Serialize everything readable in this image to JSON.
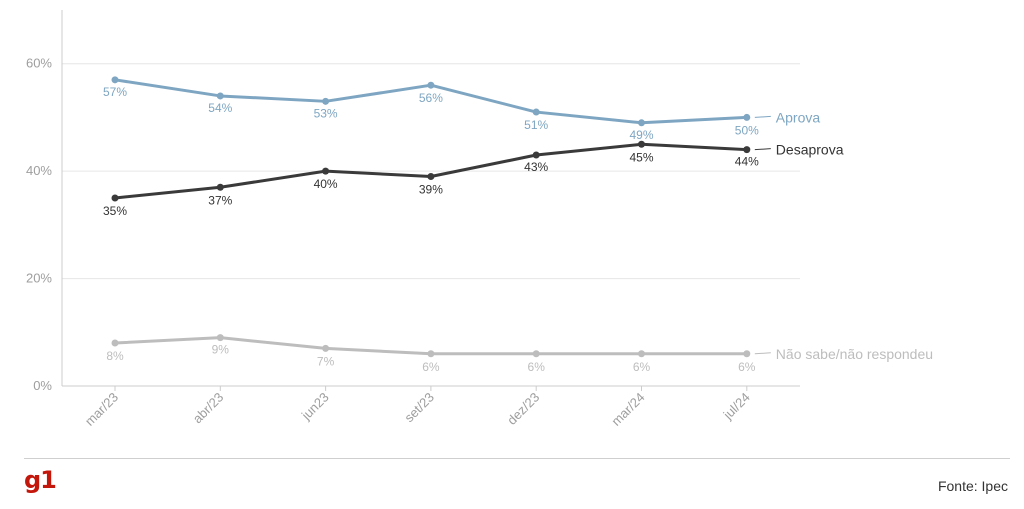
{
  "colors": {
    "aprova": "#7ea6c2",
    "desaprova": "#3a3a3a",
    "nao_sabe": "#bdbdbd",
    "grid": "#e6e6e6",
    "axis": "#cccccc",
    "logo": "#c4170c"
  },
  "chart_data": {
    "type": "line",
    "categories": [
      "mar/23",
      "abr/23",
      "jun23",
      "set/23",
      "dez/23",
      "mar/24",
      "jul/24"
    ],
    "ylim": [
      0,
      70
    ],
    "yticks": [
      0,
      20,
      40,
      60
    ],
    "ytick_labels": [
      "0%",
      "20%",
      "40%",
      "60%"
    ],
    "grid": true,
    "legend": "inline-right",
    "series": [
      {
        "key": "aprova",
        "name": "Aprova",
        "values": [
          57,
          54,
          53,
          56,
          51,
          49,
          50
        ],
        "labels": [
          "57%",
          "54%",
          "53%",
          "56%",
          "51%",
          "49%",
          "50%"
        ]
      },
      {
        "key": "desaprova",
        "name": "Desaprova",
        "values": [
          35,
          37,
          40,
          39,
          43,
          45,
          44
        ],
        "labels": [
          "35%",
          "37%",
          "40%",
          "39%",
          "43%",
          "45%",
          "44%"
        ]
      },
      {
        "key": "nao_sabe",
        "name": "Não sabe/não respondeu",
        "values": [
          8,
          9,
          7,
          6,
          6,
          6,
          6
        ],
        "labels": [
          "8%",
          "9%",
          "7%",
          "6%",
          "6%",
          "6%",
          "6%"
        ]
      }
    ]
  },
  "footer": {
    "logo_text": "g1",
    "source": "Fonte: Ipec"
  }
}
